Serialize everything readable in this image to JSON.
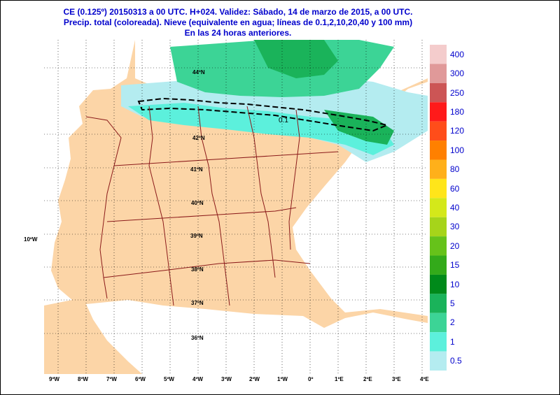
{
  "header": {
    "line1": "CE (0.125º) 20150313 a 00 UTC.  H+024. Validez: Sábado, 14 de marzo de 2015,  a  00 UTC.",
    "line2": "Precip. total (coloreada). Nieve (equivalente en agua; líneas de 0.1,2,10,20,40 y 100 mm)",
    "line3": "En las 24 horas anteriores."
  },
  "map": {
    "side_label": "10ºW",
    "longitudes": [
      "9ºW",
      "8ºW",
      "7ºW",
      "6ºW",
      "5ºW",
      "4ºW",
      "3ºW",
      "2ºW",
      "1ºW",
      "0º",
      "1ºE",
      "2ºE",
      "3ºE",
      "4ºE"
    ],
    "latitudes": [
      "44ºN",
      "42ºN",
      "41ºN",
      "40ºN",
      "39ºN",
      "38ºN",
      "37ºN",
      "36ºN"
    ],
    "contour_label": "0.1",
    "colors": {
      "land": "#fcd5a7",
      "sea": "#ffffff",
      "border": "#8b1a1a",
      "graticule": "#000000"
    }
  },
  "legend": {
    "values": [
      "400",
      "300",
      "250",
      "180",
      "120",
      "100",
      "80",
      "60",
      "40",
      "30",
      "20",
      "15",
      "10",
      "5",
      "2",
      "1",
      "0.5"
    ],
    "colors": [
      "#f4cccc",
      "#e09999",
      "#cc5555",
      "#ff1a1a",
      "#ff4d1a",
      "#ff8000",
      "#ffb01a",
      "#ffe51a",
      "#d4e81a",
      "#a6d41a",
      "#66c21a",
      "#33aa1a",
      "#008a1a",
      "#1ab35a",
      "#3cd496",
      "#5cf0dc",
      "#b4ecf0"
    ]
  }
}
